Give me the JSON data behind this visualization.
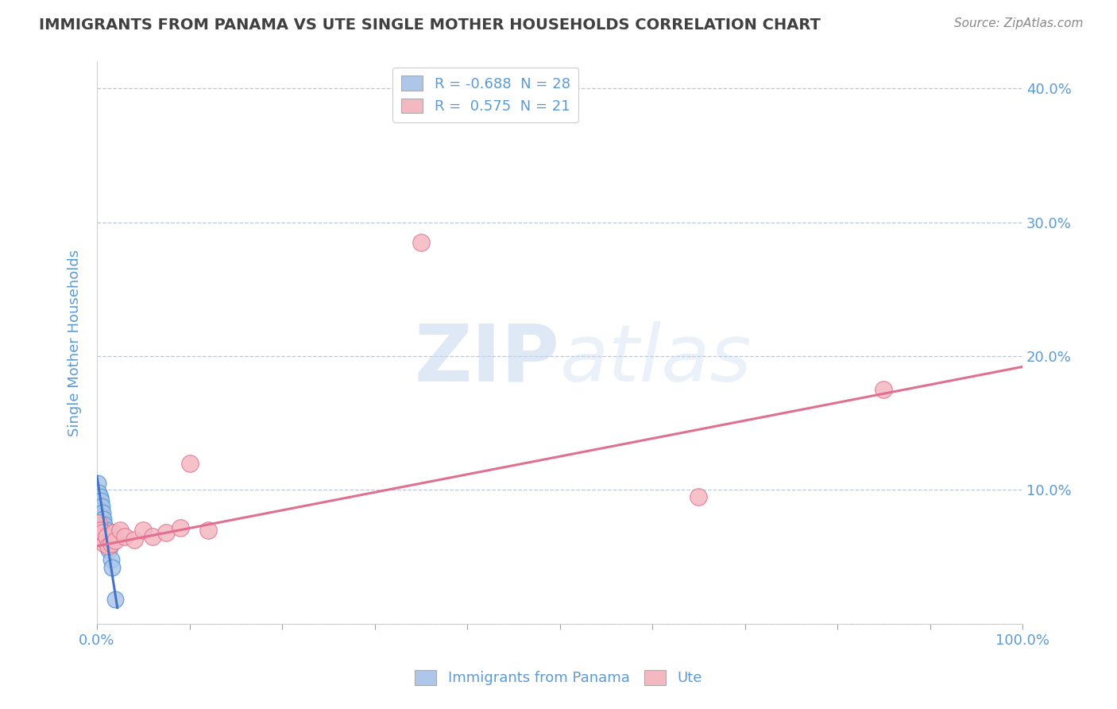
{
  "title": "IMMIGRANTS FROM PANAMA VS UTE SINGLE MOTHER HOUSEHOLDS CORRELATION CHART",
  "source": "Source: ZipAtlas.com",
  "ylabel": "Single Mother Households",
  "xlim": [
    0,
    1.0
  ],
  "ylim": [
    0,
    0.42
  ],
  "legend_entries": [
    {
      "label": "R = -0.688  N = 28",
      "color": "#aec6e8"
    },
    {
      "label": "R =  0.575  N = 21",
      "color": "#f4b8c1"
    }
  ],
  "blue_scatter_x": [
    0.001,
    0.002,
    0.002,
    0.003,
    0.003,
    0.003,
    0.004,
    0.004,
    0.004,
    0.005,
    0.005,
    0.005,
    0.006,
    0.006,
    0.006,
    0.007,
    0.007,
    0.008,
    0.008,
    0.009,
    0.01,
    0.01,
    0.011,
    0.012,
    0.013,
    0.015,
    0.016,
    0.02
  ],
  "blue_scatter_y": [
    0.105,
    0.098,
    0.09,
    0.095,
    0.088,
    0.082,
    0.092,
    0.085,
    0.078,
    0.088,
    0.08,
    0.072,
    0.083,
    0.076,
    0.07,
    0.078,
    0.072,
    0.074,
    0.068,
    0.065,
    0.07,
    0.062,
    0.06,
    0.058,
    0.055,
    0.048,
    0.042,
    0.018
  ],
  "pink_scatter_x": [
    0.002,
    0.004,
    0.005,
    0.006,
    0.008,
    0.01,
    0.012,
    0.015,
    0.018,
    0.02,
    0.025,
    0.03,
    0.04,
    0.05,
    0.06,
    0.075,
    0.09,
    0.1,
    0.12,
    0.65,
    0.85
  ],
  "pink_scatter_y": [
    0.075,
    0.07,
    0.065,
    0.068,
    0.06,
    0.065,
    0.058,
    0.06,
    0.068,
    0.062,
    0.07,
    0.065,
    0.063,
    0.07,
    0.065,
    0.068,
    0.072,
    0.12,
    0.07,
    0.095,
    0.175
  ],
  "pink_outlier_x": [
    0.35
  ],
  "pink_outlier_y": [
    0.285
  ],
  "blue_line_x": [
    0.0,
    0.022
  ],
  "blue_line_y": [
    0.11,
    0.012
  ],
  "pink_line_x": [
    0.0,
    1.0
  ],
  "pink_line_y": [
    0.058,
    0.192
  ],
  "watermark_zip": "ZIP",
  "watermark_atlas": "atlas",
  "blue_color": "#aec6e8",
  "blue_edge_color": "#5b9bd5",
  "pink_color": "#f4b8c1",
  "pink_edge_color": "#e07090",
  "blue_line_color": "#4472c4",
  "pink_line_color": "#e07090",
  "title_color": "#404040",
  "axis_label_color": "#5b9bd5",
  "grid_color": "#b0b8c8",
  "background_color": "#ffffff"
}
